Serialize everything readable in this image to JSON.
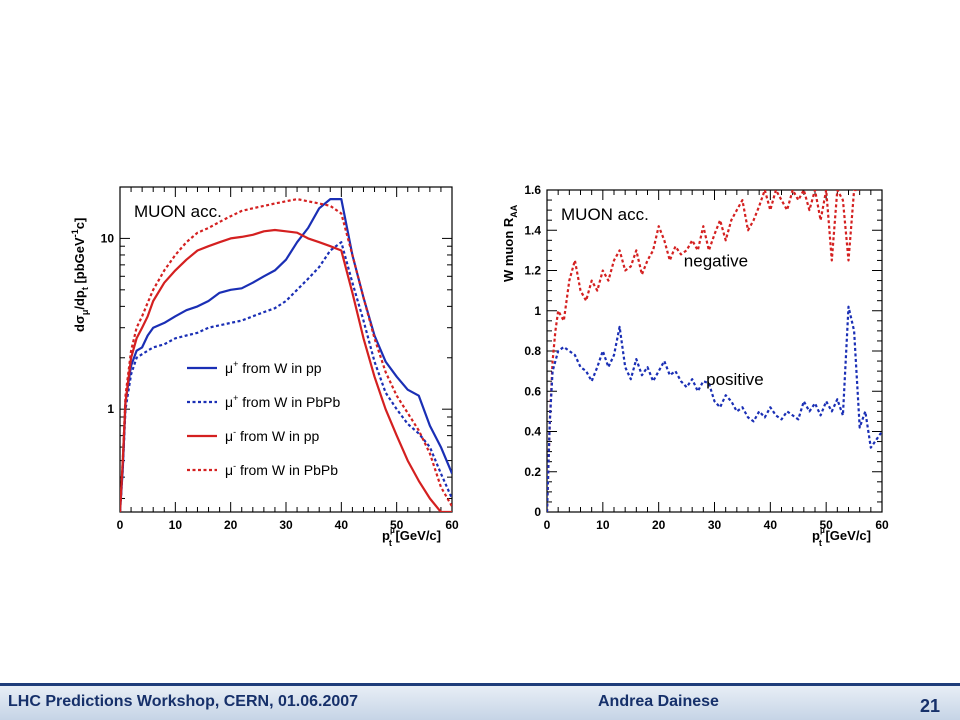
{
  "footer": {
    "left": "LHC Predictions Workshop, CERN, 01.06.2007",
    "author": "Andrea Dainese",
    "page": "21"
  },
  "chart_data": [
    {
      "type": "line",
      "annotation": "MUON acc.",
      "ylabel_parts": [
        "dσ",
        "μ",
        "/dp",
        "t",
        "  [pbGeV",
        "-1",
        "c]"
      ],
      "xlabel_parts": [
        "p",
        "μ",
        "t",
        " [GeV/c]"
      ],
      "xlim": [
        0,
        60
      ],
      "ylim": [
        0.25,
        20
      ],
      "yscale": "log",
      "x_ticks": [
        "0",
        "10",
        "20",
        "30",
        "40",
        "50",
        "60"
      ],
      "y_ticks": [
        {
          "value": 1,
          "label": "1"
        },
        {
          "value": 10,
          "label": "10"
        }
      ],
      "legend_position": "lower-center",
      "legend": [
        {
          "sym": "μ",
          "sup": "+",
          "text": " from W in pp",
          "color": "#1a2fb5",
          "dash": false
        },
        {
          "sym": "μ",
          "sup": "+",
          "text": " from W in PbPb",
          "color": "#1a2fb5",
          "dash": true
        },
        {
          "sym": "μ",
          "sup": "-",
          "text": " from W in pp",
          "color": "#d42020",
          "dash": false
        },
        {
          "sym": "μ",
          "sup": "-",
          "text": " from W in PbPb",
          "color": "#d42020",
          "dash": true
        }
      ],
      "series": [
        {
          "color": "#1a2fb5",
          "dash": false,
          "x": [
            0,
            0.5,
            1,
            2,
            3,
            4,
            5,
            6,
            8,
            10,
            12,
            14,
            16,
            18,
            20,
            22,
            24,
            26,
            28,
            30,
            32,
            34,
            36,
            38,
            40,
            42,
            44,
            46,
            48,
            50,
            52,
            54,
            56,
            58,
            60
          ],
          "y": [
            0.25,
            0.45,
            1.1,
            1.8,
            2.2,
            2.3,
            2.7,
            3.0,
            3.2,
            3.5,
            3.8,
            4.0,
            4.3,
            4.8,
            5.0,
            5.1,
            5.5,
            6.0,
            6.5,
            7.5,
            9.5,
            11.5,
            15,
            17,
            17,
            8,
            4.5,
            2.7,
            1.9,
            1.55,
            1.3,
            1.2,
            0.8,
            0.6,
            0.42
          ]
        },
        {
          "color": "#1a2fb5",
          "dash": true,
          "x": [
            0,
            0.5,
            1,
            2,
            3,
            4,
            5,
            6,
            8,
            10,
            12,
            14,
            16,
            18,
            20,
            22,
            24,
            26,
            28,
            30,
            32,
            34,
            36,
            38,
            40,
            42,
            44,
            46,
            48,
            50,
            52,
            54,
            56,
            58,
            60
          ],
          "y": [
            0.25,
            0.45,
            1.0,
            1.6,
            2.0,
            2.1,
            2.2,
            2.3,
            2.4,
            2.6,
            2.7,
            2.8,
            3.0,
            3.1,
            3.2,
            3.3,
            3.5,
            3.7,
            3.9,
            4.3,
            5.0,
            5.8,
            6.8,
            8.5,
            9.5,
            5.5,
            3.3,
            1.9,
            1.25,
            1.0,
            0.82,
            0.72,
            0.6,
            0.42,
            0.3
          ]
        },
        {
          "color": "#d42020",
          "dash": false,
          "x": [
            0,
            0.5,
            1,
            2,
            3,
            4,
            5,
            6,
            8,
            10,
            12,
            14,
            16,
            18,
            20,
            22,
            24,
            26,
            28,
            30,
            32,
            34,
            36,
            38,
            40,
            42,
            44,
            46,
            48,
            50,
            52,
            54,
            56,
            58,
            60
          ],
          "y": [
            0.25,
            0.5,
            1.1,
            2.0,
            2.6,
            3.0,
            3.5,
            4.3,
            5.5,
            6.5,
            7.5,
            8.5,
            9.0,
            9.5,
            10.0,
            10.2,
            10.5,
            11.0,
            11.2,
            11.0,
            10.8,
            10.0,
            9.5,
            9.0,
            8.5,
            4.8,
            2.6,
            1.55,
            1.0,
            0.7,
            0.5,
            0.38,
            0.3,
            0.25,
            0.22
          ]
        },
        {
          "color": "#d42020",
          "dash": true,
          "x": [
            0,
            0.5,
            1,
            2,
            3,
            4,
            5,
            6,
            8,
            10,
            12,
            14,
            16,
            18,
            20,
            22,
            24,
            26,
            28,
            30,
            32,
            34,
            36,
            38,
            40,
            42,
            44,
            46,
            48,
            50,
            52,
            54,
            56,
            58,
            60
          ],
          "y": [
            0.25,
            0.5,
            1.2,
            2.2,
            3.0,
            3.5,
            4.2,
            5.0,
            6.5,
            8.0,
            9.5,
            10.8,
            11.5,
            12.5,
            13.5,
            14.5,
            15,
            15.5,
            16,
            16.5,
            17,
            16.5,
            16,
            15.5,
            14,
            8,
            4.5,
            2.6,
            1.65,
            1.2,
            0.95,
            0.75,
            0.55,
            0.35,
            0.27
          ]
        }
      ]
    },
    {
      "type": "line",
      "annotation": "MUON acc.",
      "ylabel_parts": [
        "W muon R",
        "AA"
      ],
      "xlabel_parts": [
        "p",
        "μ",
        "t",
        " [GeV/c]"
      ],
      "xlim": [
        0,
        60
      ],
      "ylim": [
        0,
        1.6
      ],
      "x_ticks": [
        "0",
        "10",
        "20",
        "30",
        "40",
        "50",
        "60"
      ],
      "y_ticks": [
        {
          "value": 0,
          "label": "0"
        },
        {
          "value": 0.2,
          "label": "0.2"
        },
        {
          "value": 0.4,
          "label": "0.4"
        },
        {
          "value": 0.6,
          "label": "0.6"
        },
        {
          "value": 0.8,
          "label": "0.8"
        },
        {
          "value": 1,
          "label": "1"
        },
        {
          "value": 1.2,
          "label": "1.2"
        },
        {
          "value": 1.4,
          "label": "1.4"
        },
        {
          "value": 1.6,
          "label": "1.6"
        }
      ],
      "labels": [
        {
          "text": "negative",
          "x": 24.5,
          "y": 1.22
        },
        {
          "text": "positive",
          "x": 28.5,
          "y": 0.63
        }
      ],
      "series": [
        {
          "name": "negative",
          "color": "#d42020",
          "dash": true,
          "x": [
            0,
            0.5,
            1,
            1.5,
            2,
            3,
            4,
            5,
            6,
            7,
            8,
            9,
            10,
            11,
            12,
            13,
            14,
            15,
            16,
            17,
            18,
            19,
            20,
            21,
            22,
            23,
            24,
            25,
            26,
            27,
            28,
            29,
            30,
            31,
            32,
            33,
            34,
            35,
            36,
            37,
            38,
            39,
            40,
            41,
            42,
            43,
            44,
            45,
            46,
            47,
            48,
            49,
            50,
            51,
            52,
            53,
            54,
            55,
            56
          ],
          "y": [
            0,
            0.45,
            0.75,
            0.9,
            1.0,
            0.95,
            1.15,
            1.25,
            1.1,
            1.05,
            1.15,
            1.1,
            1.2,
            1.15,
            1.25,
            1.3,
            1.2,
            1.22,
            1.3,
            1.18,
            1.25,
            1.3,
            1.42,
            1.35,
            1.25,
            1.32,
            1.28,
            1.3,
            1.35,
            1.3,
            1.42,
            1.3,
            1.38,
            1.45,
            1.35,
            1.45,
            1.5,
            1.55,
            1.4,
            1.45,
            1.52,
            1.6,
            1.5,
            1.6,
            1.55,
            1.5,
            1.6,
            1.55,
            1.6,
            1.5,
            1.6,
            1.45,
            1.6,
            1.25,
            1.6,
            1.55,
            1.25,
            1.6,
            1.6
          ]
        },
        {
          "name": "positive",
          "color": "#1a2fb5",
          "dash": true,
          "x": [
            0,
            0.5,
            1,
            1.5,
            2,
            3,
            4,
            5,
            6,
            7,
            8,
            9,
            10,
            11,
            12,
            13,
            14,
            15,
            16,
            17,
            18,
            19,
            20,
            21,
            22,
            23,
            24,
            25,
            26,
            27,
            28,
            29,
            30,
            31,
            32,
            33,
            34,
            35,
            36,
            37,
            38,
            39,
            40,
            41,
            42,
            43,
            44,
            45,
            46,
            47,
            48,
            49,
            50,
            51,
            52,
            53,
            54,
            55,
            56,
            57,
            58,
            59,
            60
          ],
          "y": [
            0,
            0.45,
            0.7,
            0.75,
            0.8,
            0.82,
            0.8,
            0.78,
            0.72,
            0.7,
            0.65,
            0.72,
            0.8,
            0.72,
            0.78,
            0.92,
            0.72,
            0.66,
            0.76,
            0.68,
            0.72,
            0.65,
            0.7,
            0.75,
            0.68,
            0.7,
            0.65,
            0.62,
            0.66,
            0.6,
            0.65,
            0.64,
            0.55,
            0.52,
            0.58,
            0.55,
            0.5,
            0.52,
            0.47,
            0.45,
            0.5,
            0.47,
            0.52,
            0.48,
            0.46,
            0.5,
            0.48,
            0.46,
            0.55,
            0.5,
            0.54,
            0.48,
            0.55,
            0.5,
            0.56,
            0.48,
            1.02,
            0.9,
            0.42,
            0.5,
            0.32,
            0.36,
            0.4
          ]
        }
      ]
    }
  ]
}
